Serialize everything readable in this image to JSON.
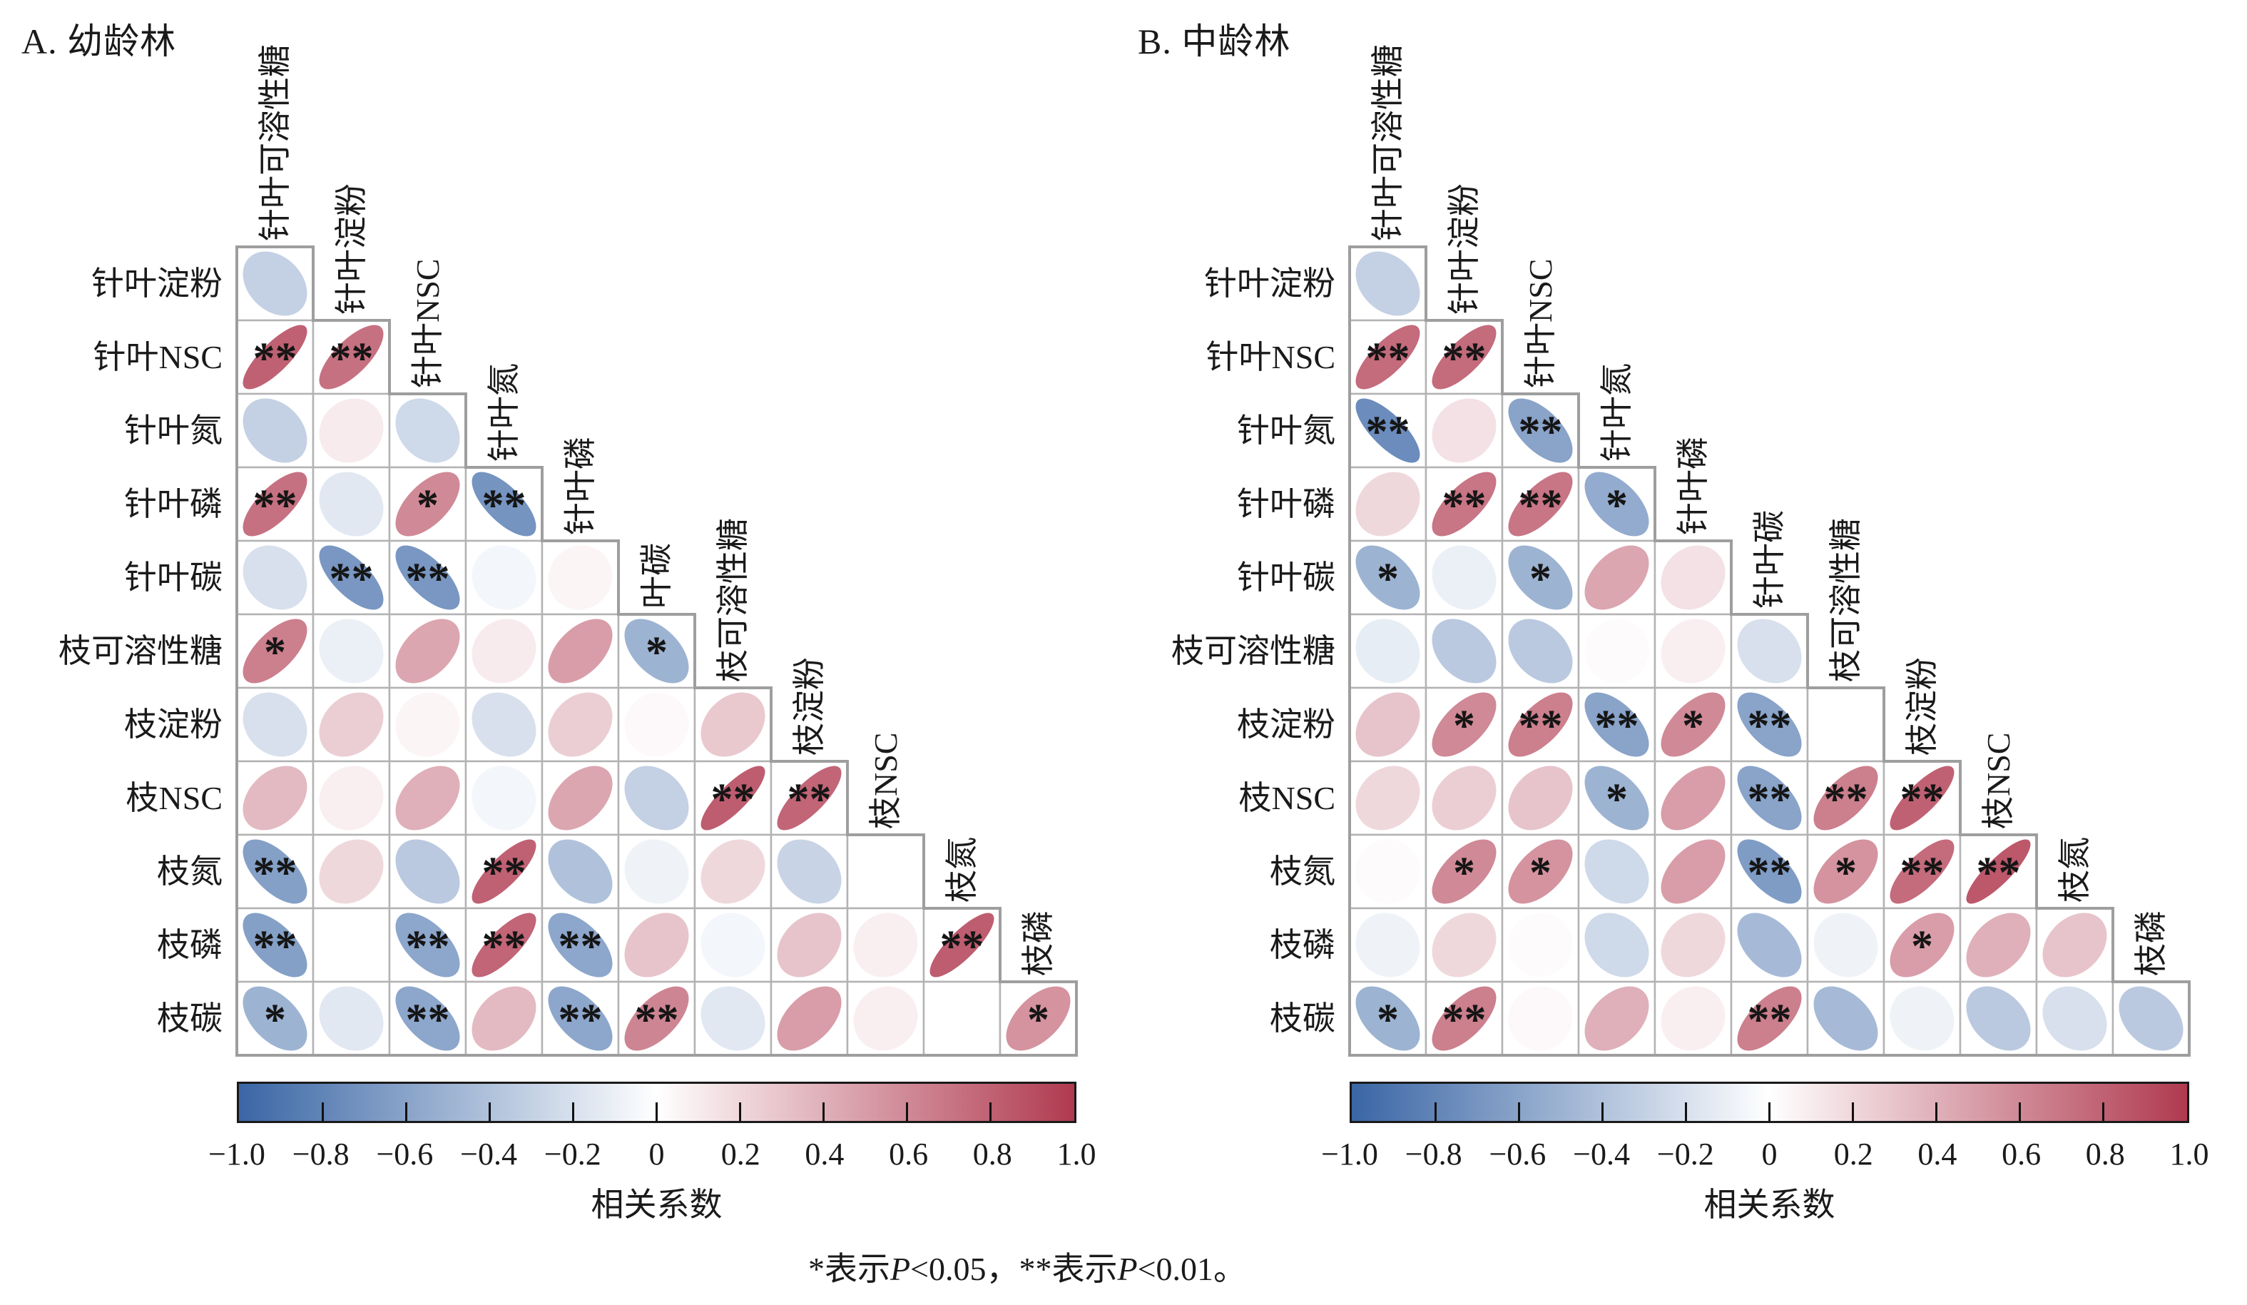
{
  "chart_data": {
    "type": "heatmap",
    "subtype": "correlation-ellipse-matrix-lower-triangle",
    "significance_legend": "*表示P<0.05，**表示P<0.01。",
    "caption_parts": [
      {
        "text": "*表示",
        "italic": false
      },
      {
        "text": "P",
        "italic": true
      },
      {
        "text": "<0.05，**表示",
        "italic": false
      },
      {
        "text": "P",
        "italic": true
      },
      {
        "text": "<0.01。",
        "italic": false
      }
    ],
    "colorbar": {
      "label": "相关系数",
      "tick_labels": [
        "−1.0",
        "−0.8",
        "−0.6",
        "−0.4",
        "−0.2",
        "0",
        "0.2",
        "0.4",
        "0.6",
        "0.8",
        "1.0"
      ],
      "tick_values": [
        -1.0,
        -0.8,
        -0.6,
        -0.4,
        -0.2,
        0,
        0.2,
        0.4,
        0.6,
        0.8,
        1.0
      ],
      "range": [
        -1.0,
        1.0
      ],
      "color_negative": "#3a66a5",
      "color_mid": "#ffffff",
      "color_positive": "#b03a50"
    },
    "panels": [
      {
        "id": "A",
        "title": "A. 幼龄林",
        "col_headers": [
          "针叶可溶性糖",
          "针叶淀粉",
          "针叶NSC",
          "针叶氮",
          "针叶磷",
          "叶碳",
          "枝可溶性糖",
          "枝淀粉",
          "枝NSC",
          "枝氮",
          "枝磷"
        ],
        "row_labels": [
          "针叶淀粉",
          "针叶NSC",
          "针叶氮",
          "针叶磷",
          "针叶碳",
          "枝可溶性糖",
          "枝淀粉",
          "枝NSC",
          "枝氮",
          "枝磷",
          "枝碳"
        ],
        "rows": [
          [
            {
              "r": -0.3,
              "sig": ""
            }
          ],
          [
            {
              "r": 0.8,
              "sig": "**"
            },
            {
              "r": 0.72,
              "sig": "**"
            }
          ],
          [
            {
              "r": -0.3,
              "sig": ""
            },
            {
              "r": 0.1,
              "sig": ""
            },
            {
              "r": -0.25,
              "sig": ""
            }
          ],
          [
            {
              "r": 0.72,
              "sig": "**"
            },
            {
              "r": -0.15,
              "sig": ""
            },
            {
              "r": 0.6,
              "sig": "*"
            },
            {
              "r": -0.7,
              "sig": "**"
            }
          ],
          [
            {
              "r": -0.2,
              "sig": ""
            },
            {
              "r": -0.68,
              "sig": "**"
            },
            {
              "r": -0.68,
              "sig": "**"
            },
            {
              "r": -0.06,
              "sig": ""
            },
            {
              "r": 0.05,
              "sig": ""
            }
          ],
          [
            {
              "r": 0.65,
              "sig": "*"
            },
            {
              "r": -0.1,
              "sig": ""
            },
            {
              "r": 0.45,
              "sig": ""
            },
            {
              "r": 0.1,
              "sig": ""
            },
            {
              "r": 0.5,
              "sig": ""
            },
            {
              "r": -0.5,
              "sig": "*"
            }
          ],
          [
            {
              "r": -0.2,
              "sig": ""
            },
            {
              "r": 0.25,
              "sig": ""
            },
            {
              "r": 0.05,
              "sig": ""
            },
            {
              "r": -0.2,
              "sig": ""
            },
            {
              "r": 0.25,
              "sig": ""
            },
            {
              "r": 0.03,
              "sig": ""
            },
            {
              "r": 0.28,
              "sig": ""
            }
          ],
          [
            {
              "r": 0.35,
              "sig": ""
            },
            {
              "r": 0.08,
              "sig": ""
            },
            {
              "r": 0.4,
              "sig": ""
            },
            {
              "r": -0.06,
              "sig": ""
            },
            {
              "r": 0.45,
              "sig": ""
            },
            {
              "r": -0.3,
              "sig": ""
            },
            {
              "r": 0.82,
              "sig": "**"
            },
            {
              "r": 0.78,
              "sig": "**"
            }
          ],
          [
            {
              "r": -0.62,
              "sig": "**"
            },
            {
              "r": 0.2,
              "sig": ""
            },
            {
              "r": -0.35,
              "sig": ""
            },
            {
              "r": 0.8,
              "sig": "**"
            },
            {
              "r": -0.4,
              "sig": ""
            },
            {
              "r": -0.08,
              "sig": ""
            },
            {
              "r": 0.2,
              "sig": ""
            },
            {
              "r": -0.28,
              "sig": ""
            },
            {
              "r": 0.0,
              "sig": ""
            }
          ],
          [
            {
              "r": -0.62,
              "sig": "**"
            },
            {
              "r": 0.0,
              "sig": ""
            },
            {
              "r": -0.58,
              "sig": "**"
            },
            {
              "r": 0.78,
              "sig": "**"
            },
            {
              "r": -0.58,
              "sig": "**"
            },
            {
              "r": 0.3,
              "sig": ""
            },
            {
              "r": -0.06,
              "sig": ""
            },
            {
              "r": 0.3,
              "sig": ""
            },
            {
              "r": 0.08,
              "sig": ""
            },
            {
              "r": 0.82,
              "sig": "**"
            }
          ],
          [
            {
              "r": -0.5,
              "sig": "*"
            },
            {
              "r": -0.15,
              "sig": ""
            },
            {
              "r": -0.58,
              "sig": "**"
            },
            {
              "r": 0.35,
              "sig": ""
            },
            {
              "r": -0.58,
              "sig": "**"
            },
            {
              "r": 0.62,
              "sig": "**"
            },
            {
              "r": -0.15,
              "sig": ""
            },
            {
              "r": 0.5,
              "sig": ""
            },
            {
              "r": 0.08,
              "sig": ""
            },
            {
              "r": 0.0,
              "sig": ""
            },
            {
              "r": 0.55,
              "sig": "*"
            }
          ]
        ]
      },
      {
        "id": "B",
        "title": "B. 中龄林",
        "col_headers": [
          "针叶可溶性糖",
          "针叶淀粉",
          "针叶NSC",
          "针叶氮",
          "针叶磷",
          "针叶碳",
          "枝可溶性糖",
          "枝淀粉",
          "枝NSC",
          "枝氮",
          "枝磷"
        ],
        "row_labels": [
          "针叶淀粉",
          "针叶NSC",
          "针叶氮",
          "针叶磷",
          "针叶碳",
          "枝可溶性糖",
          "枝淀粉",
          "枝NSC",
          "枝氮",
          "枝磷",
          "枝碳"
        ],
        "rows": [
          [
            {
              "r": -0.3,
              "sig": ""
            }
          ],
          [
            {
              "r": 0.75,
              "sig": "**"
            },
            {
              "r": 0.75,
              "sig": "**"
            }
          ],
          [
            {
              "r": -0.75,
              "sig": "**"
            },
            {
              "r": 0.15,
              "sig": ""
            },
            {
              "r": -0.6,
              "sig": "**"
            }
          ],
          [
            {
              "r": 0.2,
              "sig": ""
            },
            {
              "r": 0.7,
              "sig": "**"
            },
            {
              "r": 0.7,
              "sig": "**"
            },
            {
              "r": -0.55,
              "sig": "*"
            }
          ],
          [
            {
              "r": -0.5,
              "sig": "*"
            },
            {
              "r": -0.1,
              "sig": ""
            },
            {
              "r": -0.5,
              "sig": "*"
            },
            {
              "r": 0.45,
              "sig": ""
            },
            {
              "r": 0.15,
              "sig": ""
            }
          ],
          [
            {
              "r": -0.12,
              "sig": ""
            },
            {
              "r": -0.35,
              "sig": ""
            },
            {
              "r": -0.35,
              "sig": ""
            },
            {
              "r": 0.02,
              "sig": ""
            },
            {
              "r": 0.08,
              "sig": ""
            },
            {
              "r": -0.2,
              "sig": ""
            }
          ],
          [
            {
              "r": 0.3,
              "sig": ""
            },
            {
              "r": 0.6,
              "sig": "*"
            },
            {
              "r": 0.65,
              "sig": "**"
            },
            {
              "r": -0.6,
              "sig": "**"
            },
            {
              "r": 0.6,
              "sig": "*"
            },
            {
              "r": -0.6,
              "sig": "**"
            },
            {
              "r": 0.0,
              "sig": ""
            }
          ],
          [
            {
              "r": 0.2,
              "sig": ""
            },
            {
              "r": 0.25,
              "sig": ""
            },
            {
              "r": 0.3,
              "sig": ""
            },
            {
              "r": -0.5,
              "sig": "*"
            },
            {
              "r": 0.5,
              "sig": ""
            },
            {
              "r": -0.6,
              "sig": "**"
            },
            {
              "r": 0.65,
              "sig": "**"
            },
            {
              "r": 0.8,
              "sig": "**"
            }
          ],
          [
            {
              "r": 0.02,
              "sig": ""
            },
            {
              "r": 0.6,
              "sig": "*"
            },
            {
              "r": 0.55,
              "sig": "*"
            },
            {
              "r": -0.25,
              "sig": ""
            },
            {
              "r": 0.5,
              "sig": ""
            },
            {
              "r": -0.65,
              "sig": "**"
            },
            {
              "r": 0.55,
              "sig": "*"
            },
            {
              "r": 0.75,
              "sig": "**"
            },
            {
              "r": 0.85,
              "sig": "**"
            }
          ],
          [
            {
              "r": -0.08,
              "sig": ""
            },
            {
              "r": 0.2,
              "sig": ""
            },
            {
              "r": 0.02,
              "sig": ""
            },
            {
              "r": -0.25,
              "sig": ""
            },
            {
              "r": 0.2,
              "sig": ""
            },
            {
              "r": -0.45,
              "sig": ""
            },
            {
              "r": -0.08,
              "sig": ""
            },
            {
              "r": 0.5,
              "sig": "*"
            },
            {
              "r": 0.4,
              "sig": ""
            },
            {
              "r": 0.3,
              "sig": ""
            }
          ],
          [
            {
              "r": -0.5,
              "sig": "*"
            },
            {
              "r": 0.65,
              "sig": "**"
            },
            {
              "r": 0.03,
              "sig": ""
            },
            {
              "r": 0.4,
              "sig": ""
            },
            {
              "r": 0.08,
              "sig": ""
            },
            {
              "r": 0.65,
              "sig": "**"
            },
            {
              "r": -0.45,
              "sig": ""
            },
            {
              "r": -0.08,
              "sig": ""
            },
            {
              "r": -0.35,
              "sig": ""
            },
            {
              "r": -0.2,
              "sig": ""
            },
            {
              "r": -0.35,
              "sig": ""
            }
          ]
        ]
      }
    ]
  }
}
